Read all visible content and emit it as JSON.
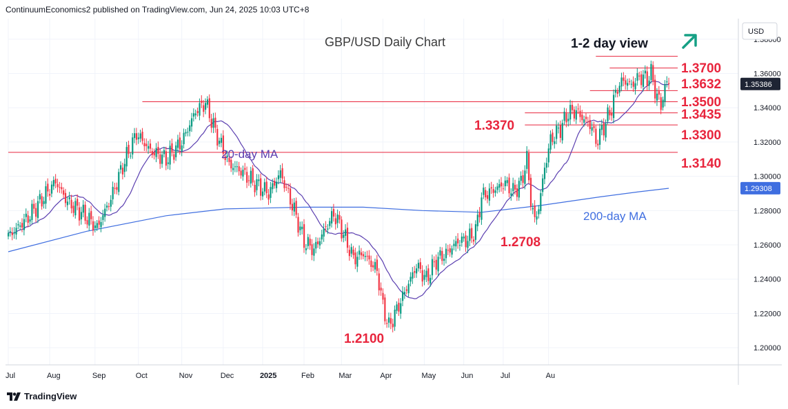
{
  "header": {
    "attribution": "ContinuumEconomics2 published on TradingView.com, Jun 24, 2025 10:03 UTC+8"
  },
  "footer": {
    "brand": "TradingView",
    "logo_icon": "tradingview-logo-icon"
  },
  "colors": {
    "up": "#089981",
    "down": "#f23645",
    "level_line": "#e8253d",
    "ma20": "#5b3fb0",
    "ma200": "#3f6ee0",
    "level_text": "#e8253d",
    "arrow": "#16a085",
    "grid": "#f0f3fa",
    "axis_text": "#131722"
  },
  "chart_data": {
    "type": "candlestick",
    "title": "GBP/USD Daily Chart",
    "subtitle": "1-2 day view",
    "view_icon": "arrow-up-right-icon",
    "currency": "USD",
    "last_price": "1.35386",
    "ma200_value": "1.29308",
    "x_labels": [
      "Jul",
      "Aug",
      "Sep",
      "Oct",
      "Nov",
      "Dec",
      "2025",
      "Feb",
      "Mar",
      "Apr",
      "May",
      "Jun",
      "Jul",
      "Au"
    ],
    "y_ticks": [
      "1.38000",
      "1.36000",
      "1.34000",
      "1.32000",
      "1.30000",
      "1.28000",
      "1.26000",
      "1.24000",
      "1.22000",
      "1.20000"
    ],
    "ylim": [
      1.19,
      1.392
    ],
    "levels": [
      {
        "label": "1.3700",
        "value": 1.37
      },
      {
        "label": "1.3632",
        "value": 1.3632
      },
      {
        "label": "1.3500",
        "value": 1.35
      },
      {
        "label": "1.3435",
        "value": 1.3435
      },
      {
        "label": "1.3370",
        "value": 1.337
      },
      {
        "label": "1.3300",
        "value": 1.33
      },
      {
        "label": "1.3140",
        "value": 1.314
      }
    ],
    "annotations": [
      "1.2708",
      "1.2100"
    ],
    "ma_labels": [
      "20-day MA",
      "200-day MA"
    ],
    "anchors": [
      [
        0,
        1.265
      ],
      [
        10,
        1.276
      ],
      [
        18,
        1.288
      ],
      [
        24,
        1.297
      ],
      [
        30,
        1.285
      ],
      [
        38,
        1.278
      ],
      [
        45,
        1.27
      ],
      [
        52,
        1.287
      ],
      [
        58,
        1.306
      ],
      [
        65,
        1.325
      ],
      [
        72,
        1.315
      ],
      [
        80,
        1.31
      ],
      [
        88,
        1.32
      ],
      [
        95,
        1.338
      ],
      [
        100,
        1.343
      ],
      [
        105,
        1.326
      ],
      [
        112,
        1.307
      ],
      [
        118,
        1.303
      ],
      [
        125,
        1.296
      ],
      [
        132,
        1.29
      ],
      [
        138,
        1.302
      ],
      [
        145,
        1.28
      ],
      [
        150,
        1.262
      ],
      [
        155,
        1.257
      ],
      [
        160,
        1.268
      ],
      [
        165,
        1.278
      ],
      [
        168,
        1.272
      ],
      [
        175,
        1.252
      ],
      [
        180,
        1.255
      ],
      [
        187,
        1.245
      ],
      [
        190,
        1.224
      ],
      [
        193,
        1.212
      ],
      [
        197,
        1.222
      ],
      [
        202,
        1.235
      ],
      [
        207,
        1.248
      ],
      [
        212,
        1.24
      ],
      [
        217,
        1.251
      ],
      [
        222,
        1.255
      ],
      [
        228,
        1.262
      ],
      [
        233,
        1.263
      ],
      [
        237,
        1.268
      ],
      [
        240,
        1.288
      ],
      [
        246,
        1.292
      ],
      [
        252,
        1.296
      ],
      [
        256,
        1.291
      ],
      [
        260,
        1.296
      ],
      [
        263,
        1.31
      ],
      [
        265,
        1.286
      ],
      [
        267,
        1.274
      ],
      [
        269,
        1.282
      ],
      [
        272,
        1.305
      ],
      [
        275,
        1.321
      ],
      [
        280,
        1.328
      ],
      [
        284,
        1.337
      ],
      [
        288,
        1.338
      ],
      [
        292,
        1.333
      ],
      [
        296,
        1.329
      ],
      [
        298,
        1.32
      ],
      [
        302,
        1.329
      ],
      [
        306,
        1.34
      ],
      [
        309,
        1.352
      ],
      [
        312,
        1.356
      ],
      [
        316,
        1.353
      ],
      [
        320,
        1.358
      ],
      [
        324,
        1.357
      ],
      [
        326,
        1.36
      ],
      [
        329,
        1.346
      ],
      [
        331,
        1.342
      ],
      [
        334,
        1.355
      ],
      [
        335,
        1.3538
      ]
    ],
    "ma200_points": [
      [
        0,
        1.256
      ],
      [
        40,
        1.268
      ],
      [
        80,
        1.277
      ],
      [
        110,
        1.281
      ],
      [
        150,
        1.282
      ],
      [
        180,
        1.282
      ],
      [
        210,
        1.28
      ],
      [
        240,
        1.279
      ],
      [
        270,
        1.283
      ],
      [
        300,
        1.288
      ],
      [
        320,
        1.291
      ],
      [
        335,
        1.293
      ]
    ]
  }
}
